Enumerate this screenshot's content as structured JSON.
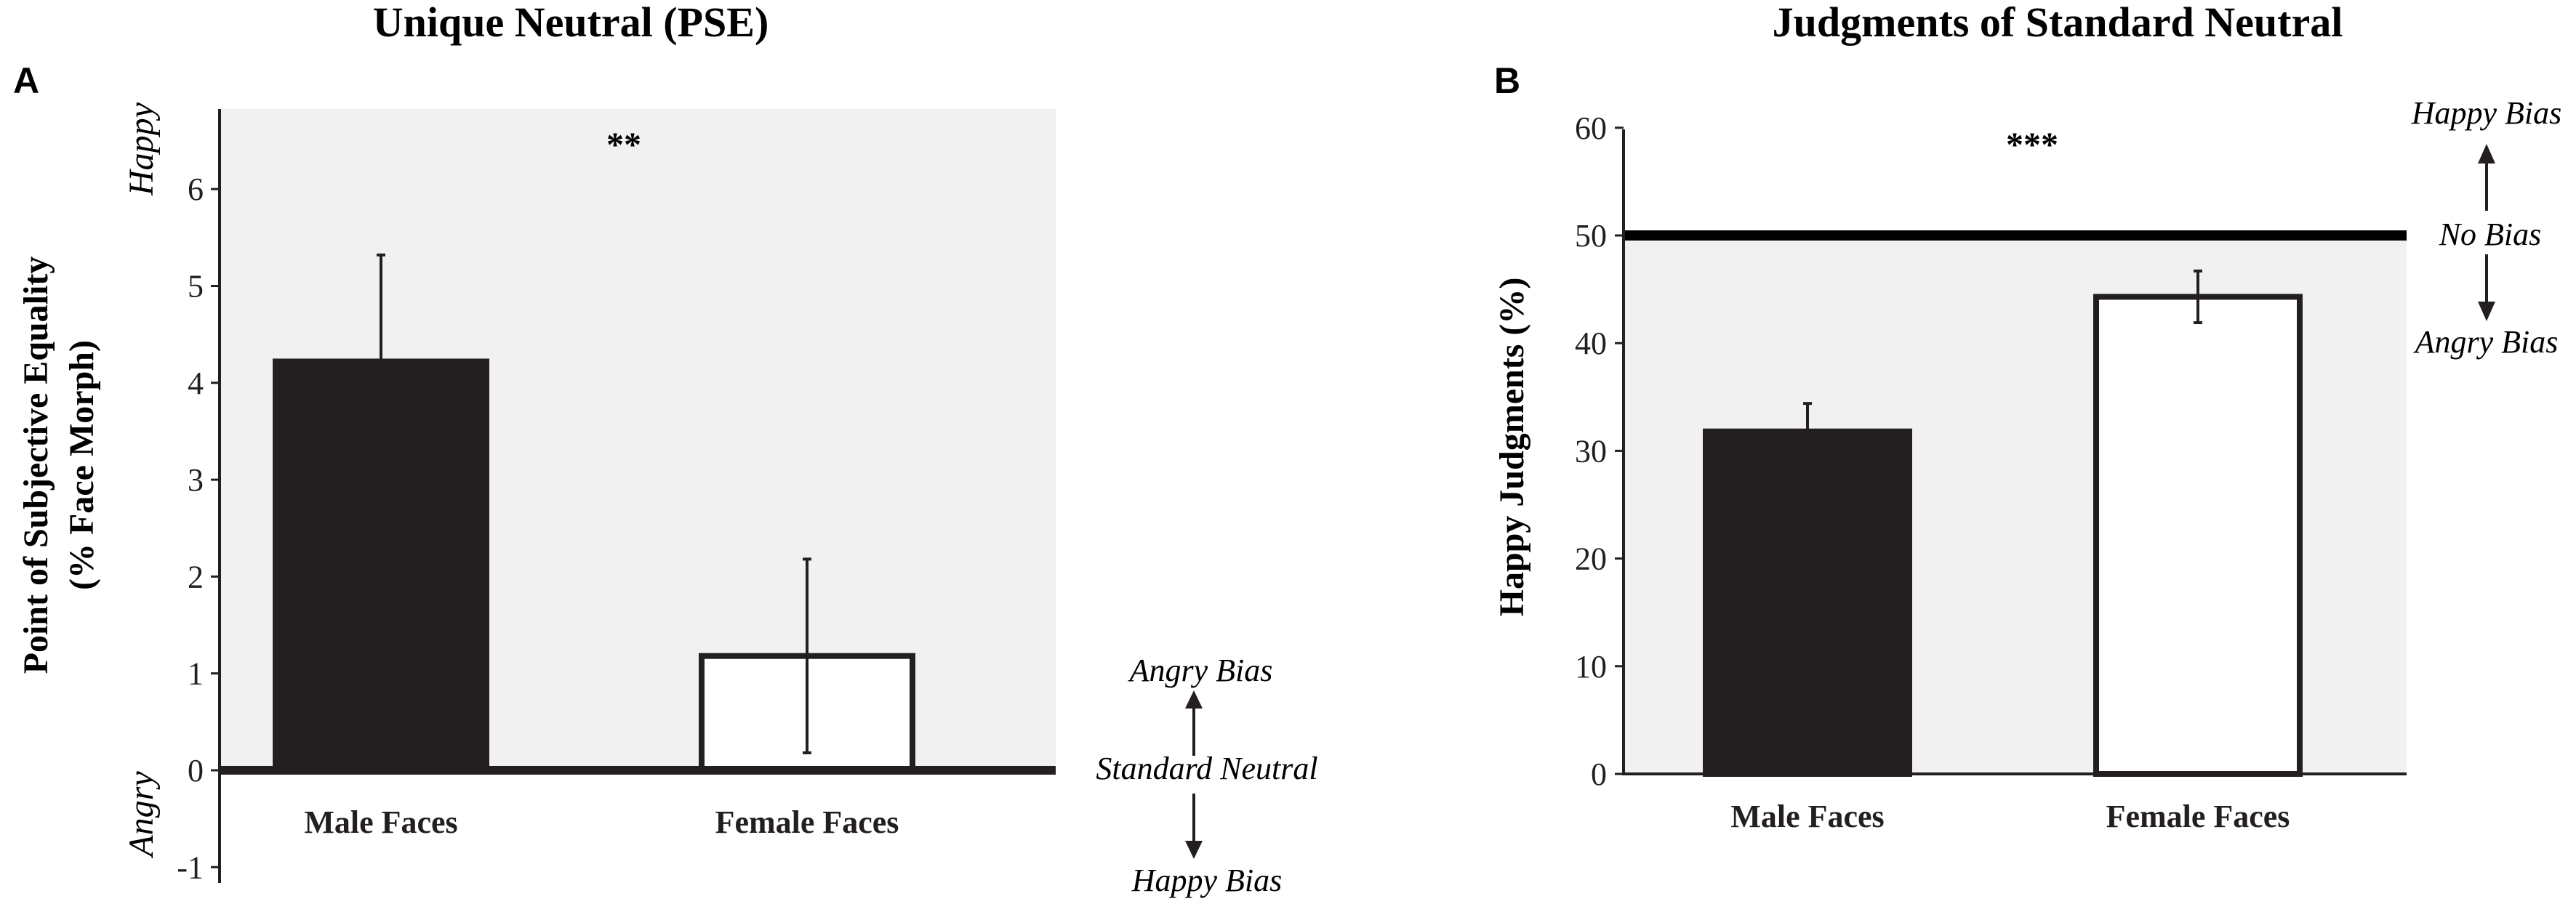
{
  "chart_data": [
    {
      "type": "bar",
      "panel_label": "A",
      "title": "Unique Neutral  (PSE)",
      "ylabel_line1": "Point of Subjective Equality",
      "ylabel_line2": "(% Face Morph)",
      "y_top_label": "Happy",
      "y_bottom_label": "Angry",
      "categories": [
        "Male Faces",
        "Female Faces"
      ],
      "values": [
        4.22,
        1.18
      ],
      "errors": [
        1.1,
        1.0
      ],
      "bar_colors": [
        "#231f20",
        "#ffffff"
      ],
      "ylim": [
        -1,
        6
      ],
      "yticks": [
        "-1",
        "0",
        "1",
        "2",
        "3",
        "4",
        "5",
        "6"
      ],
      "reference_value": 0,
      "reference_label": "Standard Neutral",
      "upper_arrow_label": "Angry Bias",
      "lower_arrow_label": "Happy Bias",
      "significance": "**",
      "background": "#f1f1f1",
      "grid": false
    },
    {
      "type": "bar",
      "panel_label": "B",
      "title": "Judgments of Standard Neutral",
      "ylabel": "Happy Judgments (%)",
      "categories": [
        "Male Faces",
        "Female Faces"
      ],
      "values": [
        31.8,
        44.3
      ],
      "errors": [
        2.6,
        2.4
      ],
      "bar_colors": [
        "#231f20",
        "#ffffff"
      ],
      "ylim": [
        0,
        60
      ],
      "yticks": [
        "0",
        "10",
        "20",
        "30",
        "40",
        "50",
        "60"
      ],
      "reference_value": 50,
      "reference_label": "No Bias",
      "upper_arrow_label": "Happy Bias",
      "lower_arrow_label": "Angry Bias",
      "significance": "***",
      "background": "#f1f1f1",
      "grid": false
    }
  ]
}
